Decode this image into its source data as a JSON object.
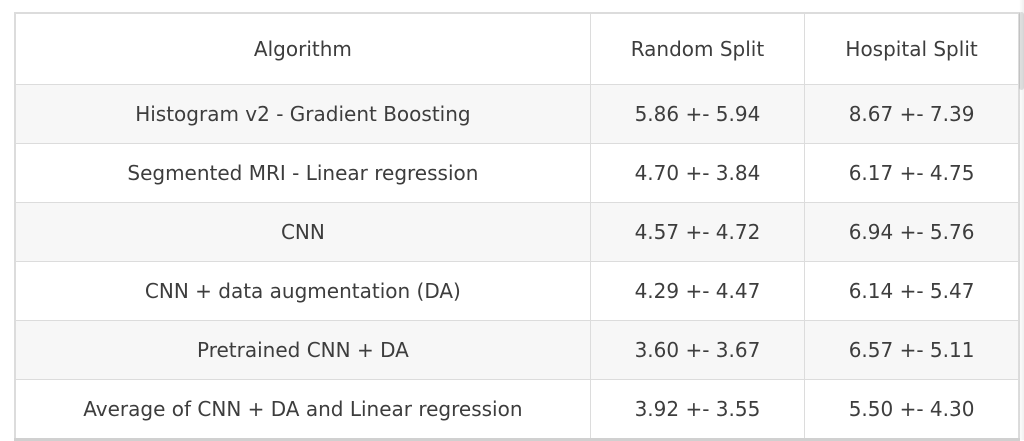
{
  "table": {
    "columns": [
      {
        "label": "Algorithm"
      },
      {
        "label": "Random Split"
      },
      {
        "label": "Hospital Split"
      }
    ],
    "rows": [
      {
        "algorithm": "Histogram v2 - Gradient Boosting",
        "random_split": "5.86 +- 5.94",
        "hospital_split": "8.67 +- 7.39"
      },
      {
        "algorithm": "Segmented MRI - Linear regression",
        "random_split": "4.70 +- 3.84",
        "hospital_split": "6.17 +- 4.75"
      },
      {
        "algorithm": "CNN",
        "random_split": "4.57 +- 4.72",
        "hospital_split": "6.94 +- 5.76"
      },
      {
        "algorithm": "CNN + data augmentation (DA)",
        "random_split": "4.29 +- 4.47",
        "hospital_split": "6.14 +- 5.47"
      },
      {
        "algorithm": "Pretrained CNN + DA",
        "random_split": "3.60 +- 3.67",
        "hospital_split": "6.57 +- 5.11"
      },
      {
        "algorithm": "Average of CNN + DA and Linear regression",
        "random_split": "3.92 +- 3.55",
        "hospital_split": "5.50 +- 4.30"
      }
    ]
  },
  "chart_data": {
    "type": "table",
    "columns": [
      "Algorithm",
      "Random Split",
      "Hospital Split"
    ],
    "categories": [
      "Histogram v2 - Gradient Boosting",
      "Segmented MRI - Linear regression",
      "CNN",
      "CNN + data augmentation (DA)",
      "Pretrained CNN + DA",
      "Average of CNN + DA and Linear regression"
    ],
    "series": [
      {
        "name": "Random Split",
        "mean": [
          5.86,
          4.7,
          4.57,
          4.29,
          3.6,
          3.92
        ],
        "std": [
          5.94,
          3.84,
          4.72,
          4.47,
          3.67,
          3.55
        ]
      },
      {
        "name": "Hospital Split",
        "mean": [
          8.67,
          6.17,
          6.94,
          6.14,
          6.57,
          5.5
        ],
        "std": [
          7.39,
          4.75,
          5.76,
          5.47,
          5.11,
          4.3
        ]
      }
    ],
    "value_format": "mean +- std"
  },
  "colors": {
    "text": "#3d3d3d",
    "border": "#dcdcdc",
    "bottom_border": "#d0d0d0",
    "row_alt_background": "#f7f7f7",
    "background": "#ffffff"
  }
}
